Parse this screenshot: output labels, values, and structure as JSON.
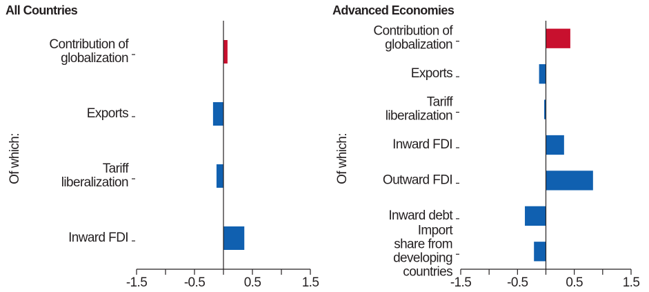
{
  "chart_data": [
    {
      "type": "barh",
      "title": "All Countries",
      "ylabel": "Of which:",
      "categories": [
        "Contribution of\nglobalization",
        "Exports",
        "Tariff\nliberalization",
        "Inward FDI"
      ],
      "values": [
        0.07,
        -0.18,
        -0.12,
        0.36
      ],
      "colors": [
        "#c8102e",
        "#1060b0",
        "#1060b0",
        "#1060b0"
      ],
      "xlim": [
        -1.5,
        1.5
      ],
      "xticks": [
        -1.5,
        -0.5,
        0.5,
        1.5
      ],
      "xminor_ticks": [
        -1,
        0,
        1
      ]
    },
    {
      "type": "barh",
      "title": "Advanced Economies",
      "ylabel": "Of which:",
      "categories": [
        "Contribution of\nglobalization",
        "Exports",
        "Tariff\nliberalization",
        "Inward FDI",
        "Outward FDI",
        "Inward debt",
        "Import\nshare from\ndeveloping\ncountries"
      ],
      "values": [
        0.43,
        -0.12,
        -0.03,
        0.32,
        0.83,
        -0.37,
        -0.21
      ],
      "colors": [
        "#c8102e",
        "#1060b0",
        "#1060b0",
        "#1060b0",
        "#1060b0",
        "#1060b0",
        "#1060b0"
      ],
      "xlim": [
        -1.5,
        1.5
      ],
      "xticks": [
        -1.5,
        -0.5,
        0.5,
        1.5
      ],
      "xminor_ticks": [
        -1,
        0,
        1
      ]
    }
  ]
}
